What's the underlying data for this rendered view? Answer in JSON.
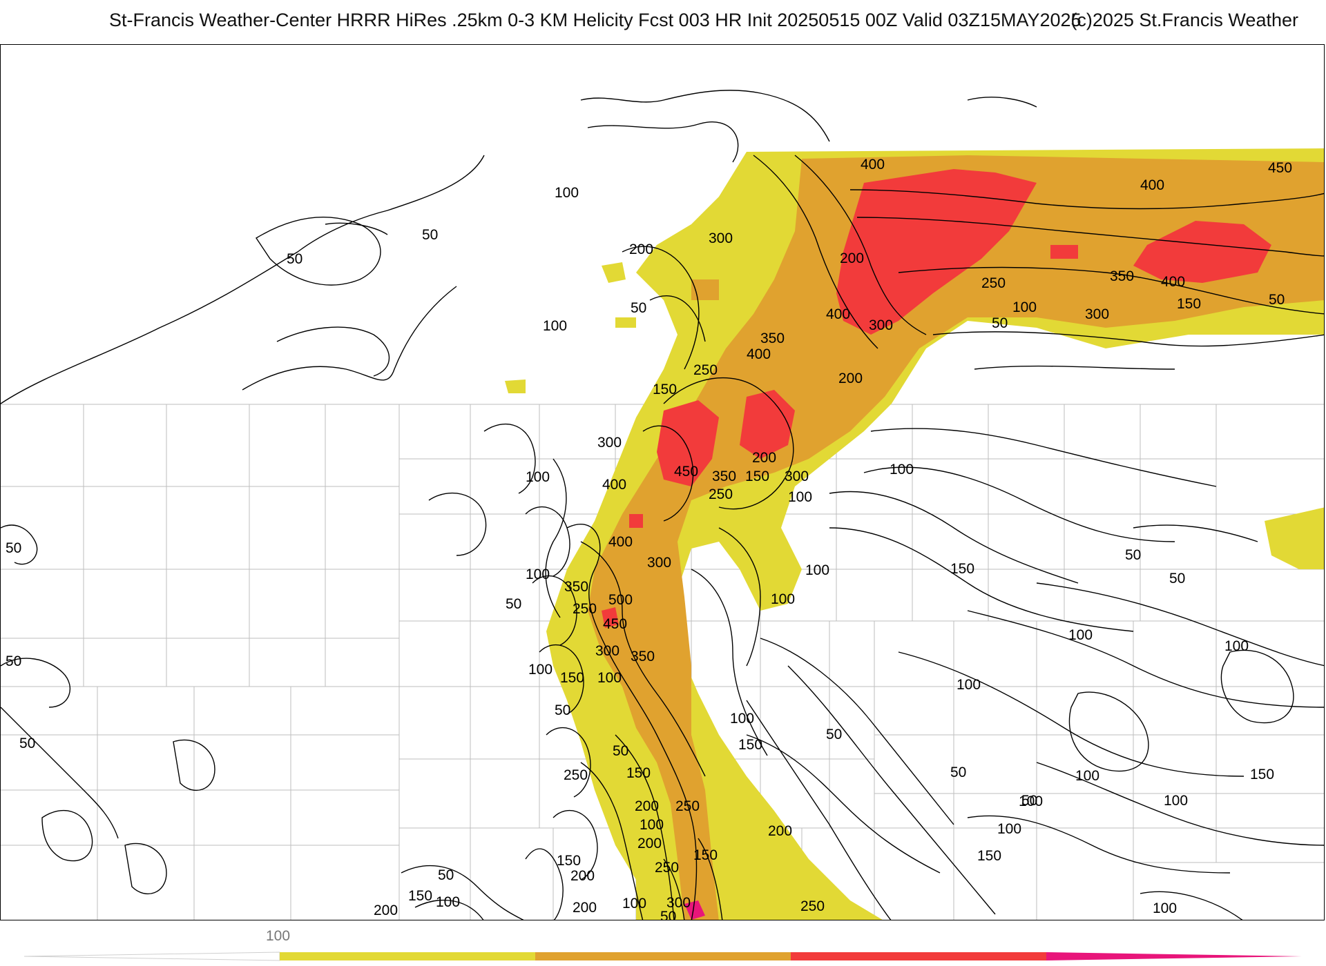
{
  "header": {
    "title": "St-Francis Weather-Center HRRR HiRes .25km 0-3 KM Helicity Fcst 003 HR Init 20250515 00Z  Valid 03Z15MAY2025",
    "copyright": "(c)2025 St.Francis Weather"
  },
  "colors": {
    "band_100_200": "#e2d935",
    "band_200_400": "#e0a22f",
    "band_400_600": "#f23b3b",
    "band_600_plus": "#e8157a",
    "contour": "#000000",
    "boundary": "#bdbdbd"
  },
  "contour_labels": [
    "400",
    "450",
    "400",
    "350",
    "400",
    "150",
    "50",
    "200",
    "300",
    "50",
    "250",
    "100",
    "300",
    "400",
    "100",
    "50",
    "100",
    "350",
    "400",
    "250",
    "150",
    "300",
    "200",
    "50",
    "50",
    "200",
    "300",
    "450",
    "100",
    "350",
    "150",
    "300",
    "200",
    "400",
    "250",
    "100",
    "400",
    "300",
    "100",
    "100",
    "150",
    "50",
    "50",
    "50",
    "100",
    "350",
    "500",
    "50",
    "100",
    "250",
    "450",
    "300",
    "350",
    "100",
    "150",
    "100",
    "100",
    "100",
    "100",
    "50",
    "100",
    "50",
    "150",
    "50",
    "250",
    "150",
    "50",
    "100",
    "150",
    "100",
    "200",
    "250",
    "200",
    "100",
    "150",
    "50",
    "100",
    "200",
    "250",
    "100",
    "150",
    "150",
    "200",
    "300",
    "100",
    "150",
    "50",
    "200",
    "100",
    "250",
    "150",
    "200",
    "100",
    "50",
    "50",
    "50"
  ],
  "colorbar": {
    "tick_label": "100",
    "segments": [
      "#e2d935",
      "#e0a22f",
      "#f23b3b",
      "#e8157a"
    ]
  }
}
